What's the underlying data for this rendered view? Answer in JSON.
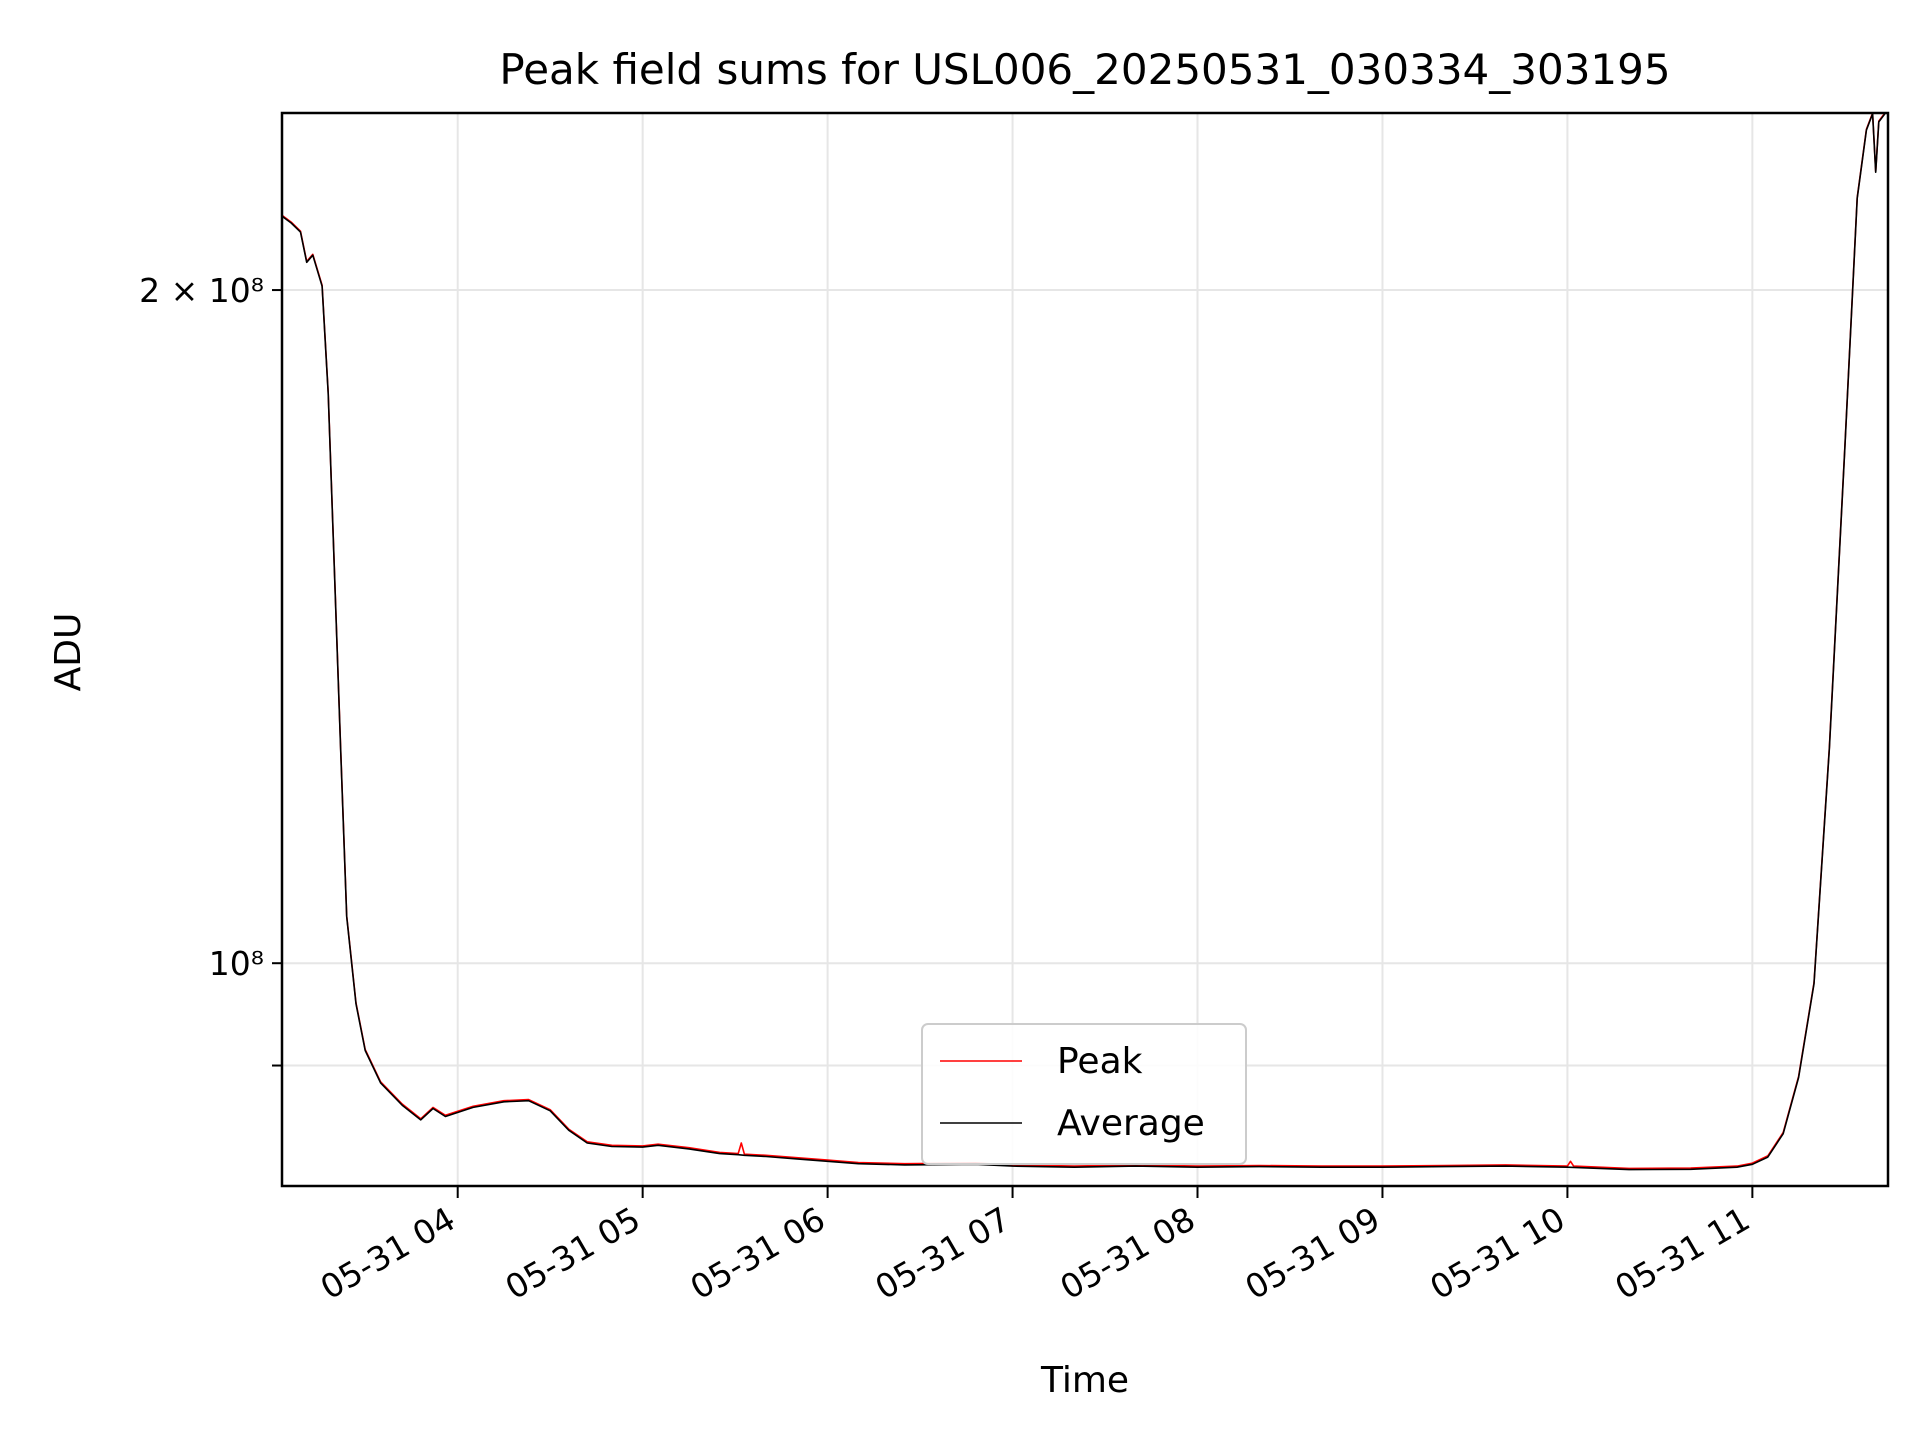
{
  "chart_data": {
    "type": "line",
    "title": "Peak field sums for USL006_20250531_030334_303195",
    "xlabel": "Time",
    "ylabel": "ADU",
    "yscale": "log",
    "ylim": [
      79500000,
      240000000
    ],
    "xlim": [
      "2025-05-31 03:03",
      "2025-05-31 11:44"
    ],
    "x_ticks": [
      {
        "time": "2025-05-31 04:00",
        "label": "05-31 04"
      },
      {
        "time": "2025-05-31 05:00",
        "label": "05-31 05"
      },
      {
        "time": "2025-05-31 06:00",
        "label": "05-31 06"
      },
      {
        "time": "2025-05-31 07:00",
        "label": "05-31 07"
      },
      {
        "time": "2025-05-31 08:00",
        "label": "05-31 08"
      },
      {
        "time": "2025-05-31 09:00",
        "label": "05-31 09"
      },
      {
        "time": "2025-05-31 10:00",
        "label": "05-31 10"
      },
      {
        "time": "2025-05-31 11:00",
        "label": "05-31 11"
      }
    ],
    "y_ticks": [
      {
        "value": 200000000,
        "label": "2 × 10⁸"
      },
      {
        "value": 100000000,
        "label": "10⁸"
      },
      {
        "value": 90000000,
        "label": ""
      }
    ],
    "grid": true,
    "legend_position": "lower center",
    "series": [
      {
        "name": "Peak",
        "color": "#ff0000",
        "points": [
          [
            "2025-05-31 03:03",
            216000000
          ],
          [
            "2025-05-31 03:06",
            214500000
          ],
          [
            "2025-05-31 03:09",
            212500000
          ],
          [
            "2025-05-31 03:11",
            206000000
          ],
          [
            "2025-05-31 03:13",
            207500000
          ],
          [
            "2025-05-31 03:16",
            201000000
          ],
          [
            "2025-05-31 03:18",
            180000000
          ],
          [
            "2025-05-31 03:20",
            150000000
          ],
          [
            "2025-05-31 03:22",
            125000000
          ],
          [
            "2025-05-31 03:24",
            105000000
          ],
          [
            "2025-05-31 03:27",
            96000000
          ],
          [
            "2025-05-31 03:30",
            91500000
          ],
          [
            "2025-05-31 03:35",
            88500000
          ],
          [
            "2025-05-31 03:42",
            86500000
          ],
          [
            "2025-05-31 03:48",
            85200000
          ],
          [
            "2025-05-31 03:52",
            86200000
          ],
          [
            "2025-05-31 03:56",
            85500000
          ],
          [
            "2025-05-31 04:05",
            86300000
          ],
          [
            "2025-05-31 04:15",
            86800000
          ],
          [
            "2025-05-31 04:23",
            86900000
          ],
          [
            "2025-05-31 04:30",
            86000000
          ],
          [
            "2025-05-31 04:36",
            84300000
          ],
          [
            "2025-05-31 04:42",
            83200000
          ],
          [
            "2025-05-31 04:50",
            82900000
          ],
          [
            "2025-05-31 05:00",
            82850000
          ],
          [
            "2025-05-31 05:05",
            83000000
          ],
          [
            "2025-05-31 05:15",
            82700000
          ],
          [
            "2025-05-31 05:25",
            82300000
          ],
          [
            "2025-05-31 05:31",
            82200000
          ],
          [
            "2025-05-31 05:32",
            83100000
          ],
          [
            "2025-05-31 05:33",
            82150000
          ],
          [
            "2025-05-31 05:40",
            82050000
          ],
          [
            "2025-05-31 05:50",
            81850000
          ],
          [
            "2025-05-31 06:00",
            81650000
          ],
          [
            "2025-05-31 06:10",
            81450000
          ],
          [
            "2025-05-31 06:25",
            81350000
          ],
          [
            "2025-05-31 06:48",
            81400000
          ],
          [
            "2025-05-31 07:00",
            81250000
          ],
          [
            "2025-05-31 07:20",
            81150000
          ],
          [
            "2025-05-31 07:40",
            81250000
          ],
          [
            "2025-05-31 08:00",
            81150000
          ],
          [
            "2025-05-31 08:20",
            81200000
          ],
          [
            "2025-05-31 08:40",
            81150000
          ],
          [
            "2025-05-31 09:00",
            81150000
          ],
          [
            "2025-05-31 09:20",
            81200000
          ],
          [
            "2025-05-31 09:40",
            81250000
          ],
          [
            "2025-05-31 10:00",
            81150000
          ],
          [
            "2025-05-31 10:01",
            81550000
          ],
          [
            "2025-05-31 10:02",
            81150000
          ],
          [
            "2025-05-31 10:20",
            80950000
          ],
          [
            "2025-05-31 10:40",
            80980000
          ],
          [
            "2025-05-31 10:55",
            81150000
          ],
          [
            "2025-05-31 11:00",
            81400000
          ],
          [
            "2025-05-31 11:05",
            82000000
          ],
          [
            "2025-05-31 11:10",
            84000000
          ],
          [
            "2025-05-31 11:15",
            89000000
          ],
          [
            "2025-05-31 11:20",
            98000000
          ],
          [
            "2025-05-31 11:25",
            125000000
          ],
          [
            "2025-05-31 11:30",
            170000000
          ],
          [
            "2025-05-31 11:34",
            220000000
          ],
          [
            "2025-05-31 11:37",
            236000000
          ],
          [
            "2025-05-31 11:39",
            240000000
          ],
          [
            "2025-05-31 11:40",
            226000000
          ],
          [
            "2025-05-31 11:41",
            238000000
          ],
          [
            "2025-05-31 11:43",
            240000000
          ]
        ]
      },
      {
        "name": "Average",
        "color": "#000000",
        "points": [
          [
            "2025-05-31 03:03",
            215800000
          ],
          [
            "2025-05-31 03:06",
            214300000
          ],
          [
            "2025-05-31 03:09",
            212300000
          ],
          [
            "2025-05-31 03:11",
            205800000
          ],
          [
            "2025-05-31 03:13",
            207300000
          ],
          [
            "2025-05-31 03:16",
            200800000
          ],
          [
            "2025-05-31 03:18",
            179800000
          ],
          [
            "2025-05-31 03:20",
            149800000
          ],
          [
            "2025-05-31 03:22",
            124800000
          ],
          [
            "2025-05-31 03:24",
            104900000
          ],
          [
            "2025-05-31 03:27",
            95900000
          ],
          [
            "2025-05-31 03:30",
            91400000
          ],
          [
            "2025-05-31 03:35",
            88400000
          ],
          [
            "2025-05-31 03:42",
            86400000
          ],
          [
            "2025-05-31 03:48",
            85100000
          ],
          [
            "2025-05-31 03:52",
            86100000
          ],
          [
            "2025-05-31 03:56",
            85400000
          ],
          [
            "2025-05-31 04:05",
            86200000
          ],
          [
            "2025-05-31 04:15",
            86700000
          ],
          [
            "2025-05-31 04:23",
            86800000
          ],
          [
            "2025-05-31 04:30",
            85900000
          ],
          [
            "2025-05-31 04:36",
            84200000
          ],
          [
            "2025-05-31 04:42",
            83100000
          ],
          [
            "2025-05-31 04:50",
            82800000
          ],
          [
            "2025-05-31 05:00",
            82750000
          ],
          [
            "2025-05-31 05:05",
            82900000
          ],
          [
            "2025-05-31 05:15",
            82600000
          ],
          [
            "2025-05-31 05:25",
            82200000
          ],
          [
            "2025-05-31 05:31",
            82100000
          ],
          [
            "2025-05-31 05:33",
            82050000
          ],
          [
            "2025-05-31 05:40",
            81950000
          ],
          [
            "2025-05-31 05:50",
            81750000
          ],
          [
            "2025-05-31 06:00",
            81550000
          ],
          [
            "2025-05-31 06:10",
            81350000
          ],
          [
            "2025-05-31 06:25",
            81250000
          ],
          [
            "2025-05-31 06:48",
            81300000
          ],
          [
            "2025-05-31 07:00",
            81150000
          ],
          [
            "2025-05-31 07:20",
            81050000
          ],
          [
            "2025-05-31 07:40",
            81150000
          ],
          [
            "2025-05-31 08:00",
            81050000
          ],
          [
            "2025-05-31 08:20",
            81100000
          ],
          [
            "2025-05-31 08:40",
            81050000
          ],
          [
            "2025-05-31 09:00",
            81050000
          ],
          [
            "2025-05-31 09:20",
            81100000
          ],
          [
            "2025-05-31 09:40",
            81150000
          ],
          [
            "2025-05-31 10:00",
            81050000
          ],
          [
            "2025-05-31 10:20",
            80850000
          ],
          [
            "2025-05-31 10:40",
            80880000
          ],
          [
            "2025-05-31 10:55",
            81050000
          ],
          [
            "2025-05-31 11:00",
            81300000
          ],
          [
            "2025-05-31 11:05",
            81900000
          ],
          [
            "2025-05-31 11:10",
            83900000
          ],
          [
            "2025-05-31 11:15",
            88900000
          ],
          [
            "2025-05-31 11:20",
            97900000
          ],
          [
            "2025-05-31 11:25",
            124800000
          ],
          [
            "2025-05-31 11:30",
            169800000
          ],
          [
            "2025-05-31 11:34",
            219800000
          ],
          [
            "2025-05-31 11:37",
            235800000
          ],
          [
            "2025-05-31 11:39",
            239800000
          ],
          [
            "2025-05-31 11:40",
            225800000
          ],
          [
            "2025-05-31 11:41",
            237800000
          ],
          [
            "2025-05-31 11:43",
            239800000
          ]
        ]
      }
    ]
  }
}
